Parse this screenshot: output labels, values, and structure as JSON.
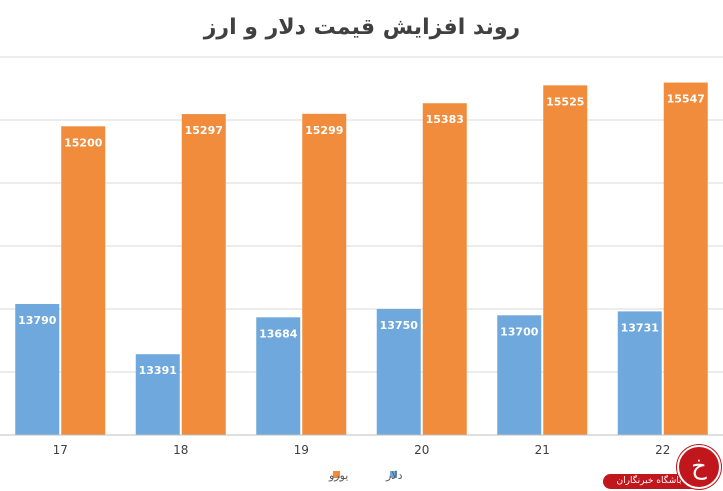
{
  "chart_data": {
    "type": "bar",
    "title": "روند افزایش قیمت دلار و ارز",
    "categories": [
      "17",
      "18",
      "19",
      "20",
      "21",
      "22"
    ],
    "series": [
      {
        "name": "دلار",
        "color": "#6fa8dc",
        "values": [
          13790,
          13391,
          13684,
          13750,
          13700,
          13731
        ]
      },
      {
        "name": "یورو",
        "color": "#f08c3c",
        "values": [
          15200,
          15297,
          15299,
          15383,
          15525,
          15547
        ]
      }
    ],
    "legend_position": "bottom-center",
    "grid": true,
    "ylim": [
      12750,
      15750
    ],
    "y_gridlines": [
      12750,
      13250,
      13750,
      14250,
      14750,
      15250,
      15750
    ],
    "xlabel": "",
    "ylabel": ""
  },
  "watermark": {
    "text": "باشگاه خبرنگاران",
    "icon": "khabar-logo-icon"
  }
}
